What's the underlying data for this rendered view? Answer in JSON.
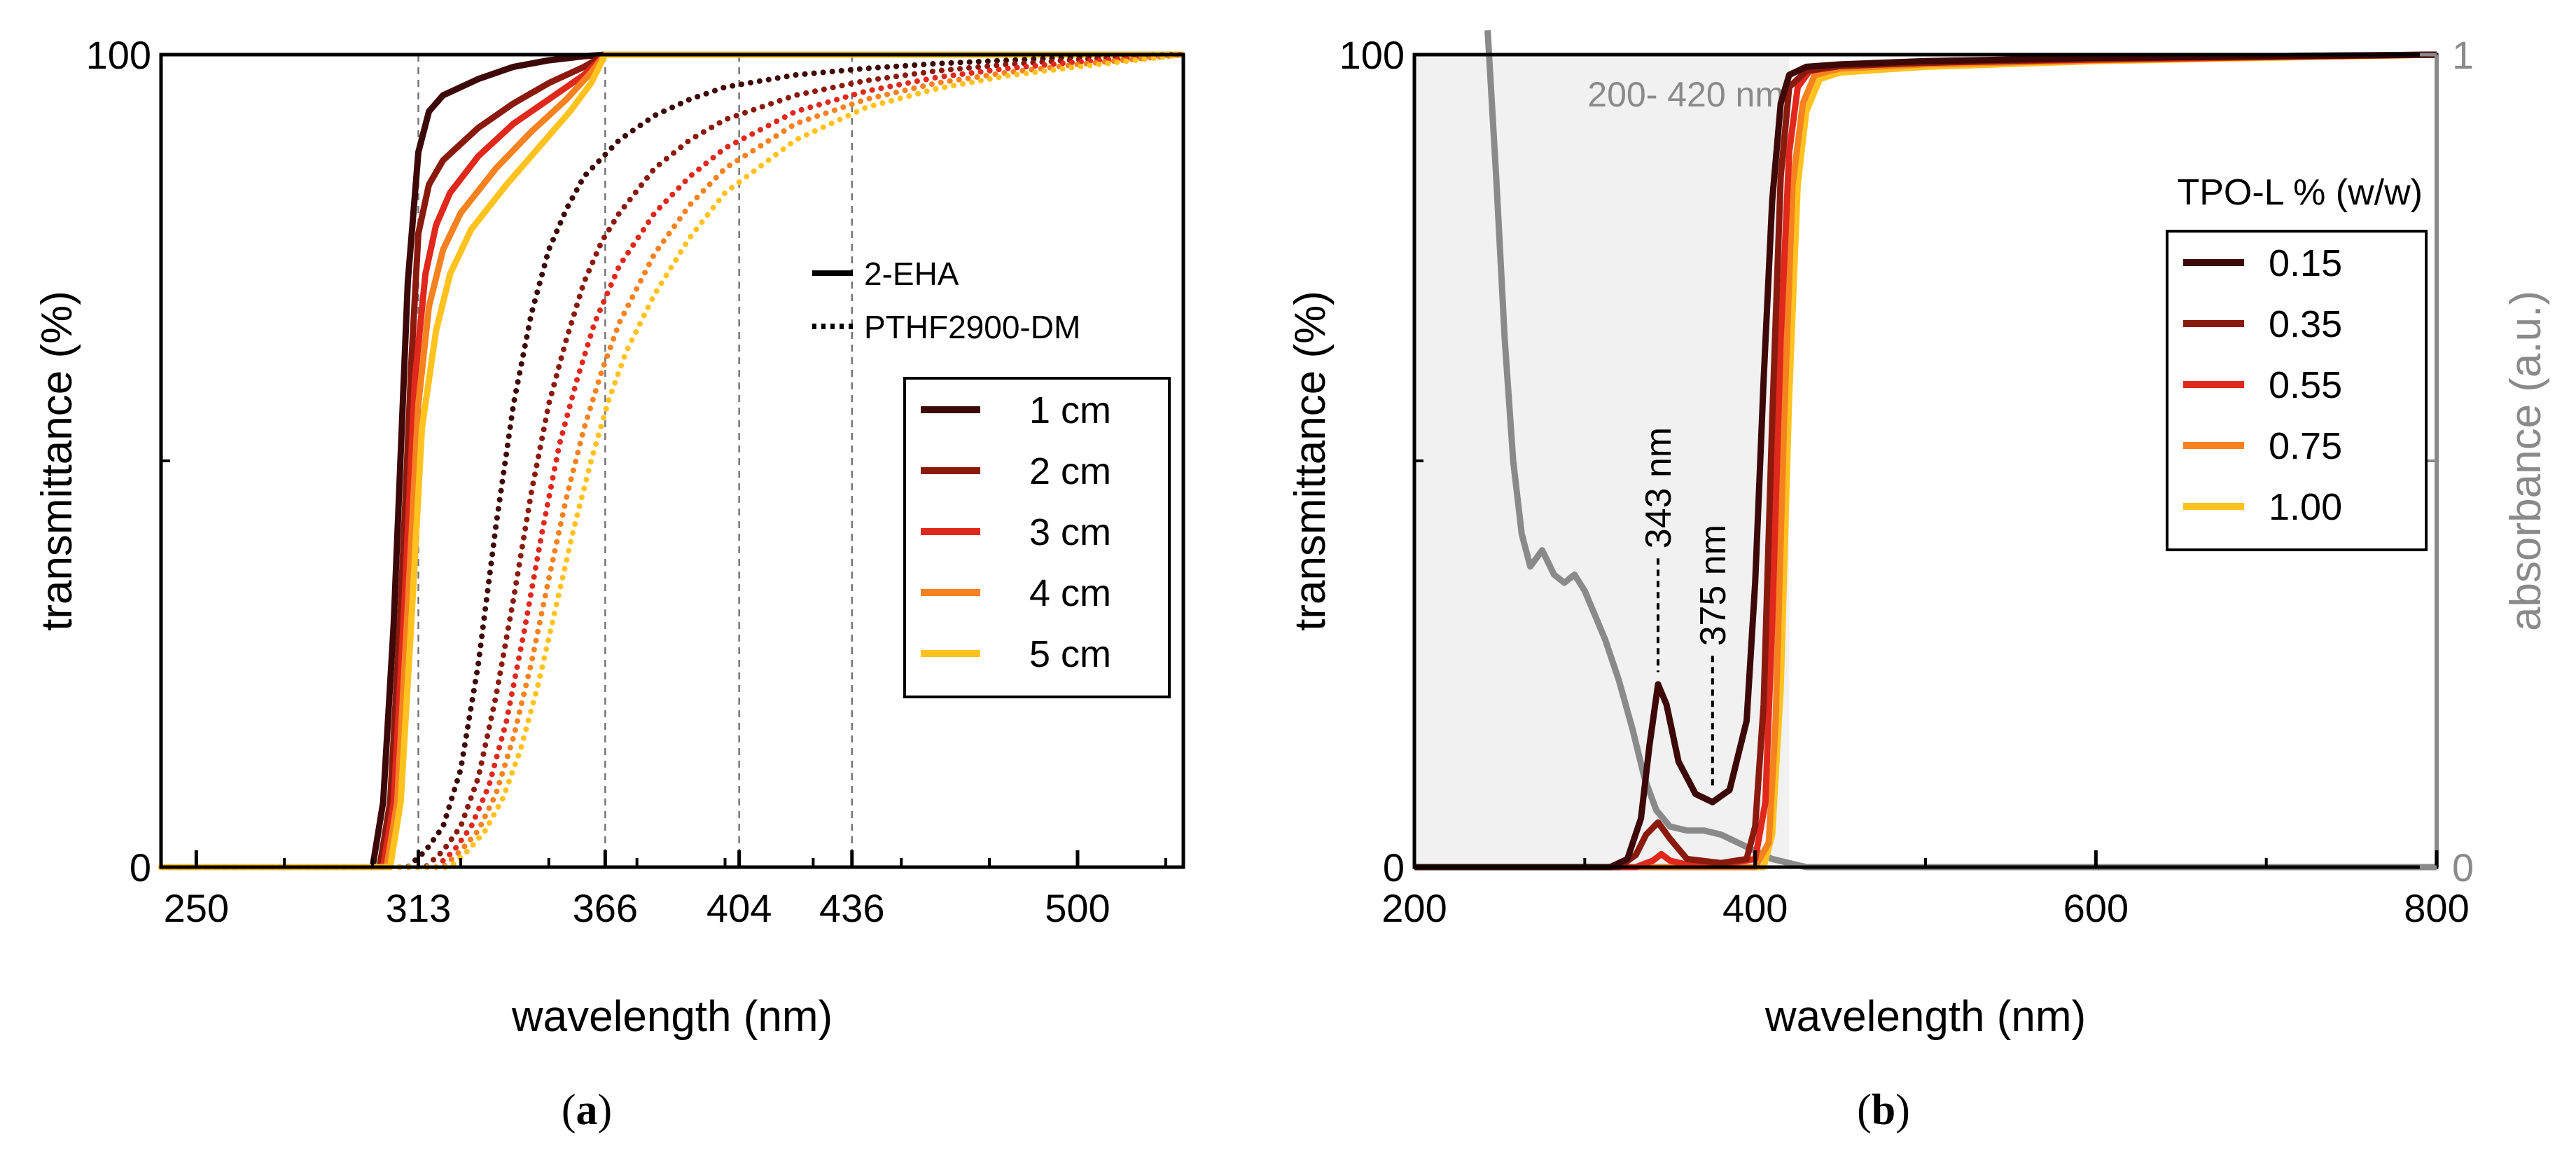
{
  "chart_data": [
    {
      "panel": "a",
      "type": "line",
      "xlabel": "wavelength (nm)",
      "ylabel": "transmittance (%)",
      "xlim": [
        240,
        530
      ],
      "ylim": [
        0,
        100
      ],
      "xticks": [
        250,
        313,
        366,
        404,
        436,
        500
      ],
      "yticks": [
        0,
        100
      ],
      "reference_lines_x": [
        313,
        366,
        404,
        436
      ],
      "grid": false,
      "style_legend": {
        "placement": "top-right",
        "entries": [
          {
            "label": "2-EHA",
            "dash": "solid"
          },
          {
            "label": "PTHF2900-DM",
            "dash": "dotted"
          }
        ]
      },
      "legend": {
        "placement": "right",
        "entries": [
          "1 cm",
          "2 cm",
          "3 cm",
          "4 cm",
          "5 cm"
        ]
      },
      "colors": [
        "#3d0808",
        "#8b1a0e",
        "#e0281c",
        "#f5821f",
        "#ffc21f"
      ],
      "series": [
        {
          "name": "1 cm",
          "material": "2-EHA",
          "color": "#3d0808",
          "x": [
            240,
            300,
            303,
            306,
            310,
            313,
            316,
            320,
            330,
            340,
            350,
            360,
            366,
            530
          ],
          "y": [
            0,
            0,
            8,
            30,
            72,
            88,
            93,
            95,
            97,
            98.5,
            99.3,
            99.8,
            100,
            100
          ]
        },
        {
          "name": "2 cm",
          "material": "2-EHA",
          "color": "#8b1a0e",
          "x": [
            240,
            302,
            305,
            308,
            311,
            313,
            316,
            320,
            330,
            340,
            350,
            360,
            366,
            530
          ],
          "y": [
            0,
            0,
            8,
            32,
            62,
            78,
            84,
            87,
            91,
            94,
            96.5,
            98.5,
            100,
            100
          ]
        },
        {
          "name": "3 cm",
          "material": "2-EHA",
          "color": "#e0281c",
          "x": [
            240,
            303,
            306,
            309,
            312,
            315,
            318,
            322,
            330,
            340,
            350,
            360,
            366,
            530
          ],
          "y": [
            0,
            0,
            8,
            32,
            60,
            73,
            79,
            83,
            87.5,
            91.5,
            94.5,
            97.5,
            100,
            100
          ]
        },
        {
          "name": "4 cm",
          "material": "2-EHA",
          "color": "#f5821f",
          "x": [
            240,
            304,
            307,
            310,
            313,
            316,
            320,
            325,
            335,
            345,
            355,
            362,
            366,
            530
          ],
          "y": [
            0,
            0,
            8,
            32,
            57,
            69,
            76,
            80.5,
            86,
            90.5,
            94.5,
            97.8,
            100,
            100
          ]
        },
        {
          "name": "5 cm",
          "material": "2-EHA",
          "color": "#ffc21f",
          "x": [
            240,
            305,
            308,
            311,
            314,
            318,
            322,
            328,
            338,
            348,
            356,
            362,
            366,
            530
          ],
          "y": [
            0,
            0,
            8,
            30,
            54,
            66,
            73,
            78.5,
            84,
            89,
            93,
            96.5,
            100,
            100
          ]
        },
        {
          "name": "1 cm",
          "material": "PTHF2900-DM",
          "color": "#3d0808",
          "x": [
            240,
            310,
            315,
            320,
            325,
            330,
            335,
            340,
            345,
            350,
            355,
            360,
            370,
            380,
            390,
            400,
            420,
            440,
            460,
            480,
            500,
            530
          ],
          "y": [
            0,
            0,
            2,
            5,
            12,
            25,
            42,
            57,
            68,
            76,
            81,
            85,
            89.5,
            92.5,
            94.5,
            96,
            97.5,
            98.3,
            98.9,
            99.3,
            99.7,
            100
          ]
        },
        {
          "name": "2 cm",
          "material": "PTHF2900-DM",
          "color": "#8b1a0e",
          "x": [
            240,
            315,
            320,
            325,
            330,
            335,
            340,
            345,
            350,
            355,
            360,
            365,
            370,
            380,
            390,
            400,
            420,
            440,
            460,
            480,
            500,
            530
          ],
          "y": [
            0,
            0,
            2,
            5,
            11,
            21,
            33,
            46,
            57,
            65,
            72,
            77,
            80.5,
            86,
            89.5,
            92,
            95,
            96.8,
            98,
            98.8,
            99.4,
            100
          ]
        },
        {
          "name": "3 cm",
          "material": "PTHF2900-DM",
          "color": "#e0281c",
          "x": [
            240,
            318,
            323,
            328,
            333,
            338,
            343,
            348,
            353,
            358,
            363,
            370,
            380,
            390,
            400,
            420,
            440,
            460,
            480,
            500,
            530
          ],
          "y": [
            0,
            0,
            2,
            5,
            10,
            18,
            29,
            41,
            52,
            60,
            67,
            74,
            80.5,
            85,
            88.5,
            93,
            95.5,
            97.2,
            98.3,
            99.1,
            100
          ]
        },
        {
          "name": "4 cm",
          "material": "PTHF2900-DM",
          "color": "#f5821f",
          "x": [
            240,
            320,
            325,
            330,
            335,
            340,
            345,
            350,
            355,
            360,
            365,
            370,
            380,
            390,
            400,
            420,
            440,
            460,
            480,
            500,
            530
          ],
          "y": [
            0,
            0,
            2,
            4.5,
            9,
            16,
            25,
            35.5,
            45.5,
            54,
            61,
            67,
            75.5,
            81.5,
            86,
            91.5,
            94.5,
            96.5,
            97.8,
            98.8,
            100
          ]
        },
        {
          "name": "5 cm",
          "material": "PTHF2900-DM",
          "color": "#ffc21f",
          "x": [
            240,
            322,
            327,
            332,
            337,
            342,
            347,
            352,
            357,
            362,
            367,
            372,
            380,
            390,
            400,
            420,
            440,
            460,
            480,
            500,
            530
          ],
          "y": [
            0,
            0,
            2,
            4.5,
            8.5,
            14.5,
            22.5,
            32,
            41.5,
            50,
            57.5,
            63.5,
            70.5,
            77.5,
            83,
            89.5,
            93.5,
            95.8,
            97.4,
            98.5,
            100
          ]
        }
      ]
    },
    {
      "panel": "b",
      "type": "line",
      "xlabel": "wavelength (nm)",
      "ylabel": "transmittance (%)",
      "y2label": "absorbance (a.u.)",
      "xlim": [
        200,
        800
      ],
      "ylim": [
        0,
        100
      ],
      "y2lim": [
        0,
        1
      ],
      "xticks": [
        200,
        400,
        600,
        800
      ],
      "yticks": [
        0,
        100
      ],
      "y2ticks": [
        0,
        1
      ],
      "grid": false,
      "shaded_region": {
        "x": [
          200,
          420
        ],
        "label": "200- 420 nm"
      },
      "annotations": [
        {
          "text": "343 nm",
          "x": 343,
          "y": 24
        },
        {
          "text": "375 nm",
          "x": 375,
          "y": 10
        }
      ],
      "legend": {
        "placement": "right",
        "title": "TPO-L % (w/w)",
        "entries": [
          "0.15",
          "0.35",
          "0.55",
          "0.75",
          "1.00"
        ]
      },
      "colors": [
        "#3d0808",
        "#8b1a0e",
        "#e0281c",
        "#f5821f",
        "#ffc21f"
      ],
      "series": [
        {
          "name": "0.15",
          "axis": "left",
          "color": "#3d0808",
          "x": [
            200,
            315,
            325,
            333,
            338,
            343,
            348,
            355,
            365,
            375,
            385,
            395,
            400,
            405,
            410,
            415,
            420,
            430,
            450,
            500,
            600,
            700,
            800
          ],
          "y": [
            0,
            0,
            1,
            6,
            15,
            22.5,
            20,
            13,
            9,
            8,
            9.5,
            18,
            35,
            60,
            82,
            94,
            97.5,
            98.5,
            98.8,
            99.2,
            99.6,
            99.8,
            100
          ]
        },
        {
          "name": "0.35",
          "axis": "left",
          "color": "#8b1a0e",
          "x": [
            200,
            320,
            330,
            336,
            343,
            350,
            360,
            380,
            395,
            400,
            405,
            410,
            415,
            420,
            430,
            450,
            500,
            600,
            700,
            800
          ],
          "y": [
            0,
            0,
            1.5,
            4,
            5.5,
            3.5,
            1,
            0.5,
            1,
            5,
            20,
            55,
            85,
            96,
            98,
            98.6,
            99,
            99.5,
            99.8,
            100
          ]
        },
        {
          "name": "0.55",
          "axis": "left",
          "color": "#e0281c",
          "x": [
            200,
            330,
            340,
            345,
            350,
            360,
            380,
            400,
            406,
            410,
            415,
            420,
            425,
            432,
            450,
            500,
            600,
            700,
            800
          ],
          "y": [
            0,
            0,
            0.8,
            1.6,
            0.8,
            0.3,
            0.3,
            1,
            8,
            30,
            65,
            88,
            96,
            98,
            98.6,
            99,
            99.4,
            99.7,
            100
          ]
        },
        {
          "name": "0.75",
          "axis": "left",
          "color": "#f5821f",
          "x": [
            200,
            400,
            408,
            412,
            417,
            422,
            428,
            435,
            450,
            500,
            600,
            700,
            800
          ],
          "y": [
            0,
            0,
            3,
            18,
            55,
            84,
            94,
            97.5,
            98.3,
            98.8,
            99.3,
            99.7,
            100
          ]
        },
        {
          "name": "1.00",
          "axis": "left",
          "color": "#ffc21f",
          "x": [
            200,
            405,
            410,
            415,
            420,
            425,
            430,
            438,
            450,
            500,
            600,
            700,
            800
          ],
          "y": [
            0,
            0,
            4,
            22,
            58,
            84,
            93,
            97,
            97.8,
            98.5,
            99.2,
            99.6,
            100
          ]
        },
        {
          "name": "",
          "axis": "right",
          "color": "#8a8a8a",
          "x": [
            243,
            248,
            253,
            258,
            263,
            268,
            275,
            282,
            288,
            294,
            300,
            306,
            312,
            320,
            328,
            335,
            342,
            350,
            360,
            370,
            380,
            390,
            400,
            410,
            420,
            430,
            440,
            500,
            600,
            700,
            800
          ],
          "y": [
            1.03,
            0.85,
            0.65,
            0.5,
            0.41,
            0.37,
            0.39,
            0.36,
            0.35,
            0.36,
            0.34,
            0.31,
            0.28,
            0.23,
            0.17,
            0.11,
            0.07,
            0.05,
            0.045,
            0.045,
            0.04,
            0.03,
            0.02,
            0.01,
            0.005,
            0,
            0,
            0,
            0,
            0,
            0
          ]
        }
      ]
    }
  ],
  "panel_labels": {
    "a": "a",
    "b": "b"
  }
}
